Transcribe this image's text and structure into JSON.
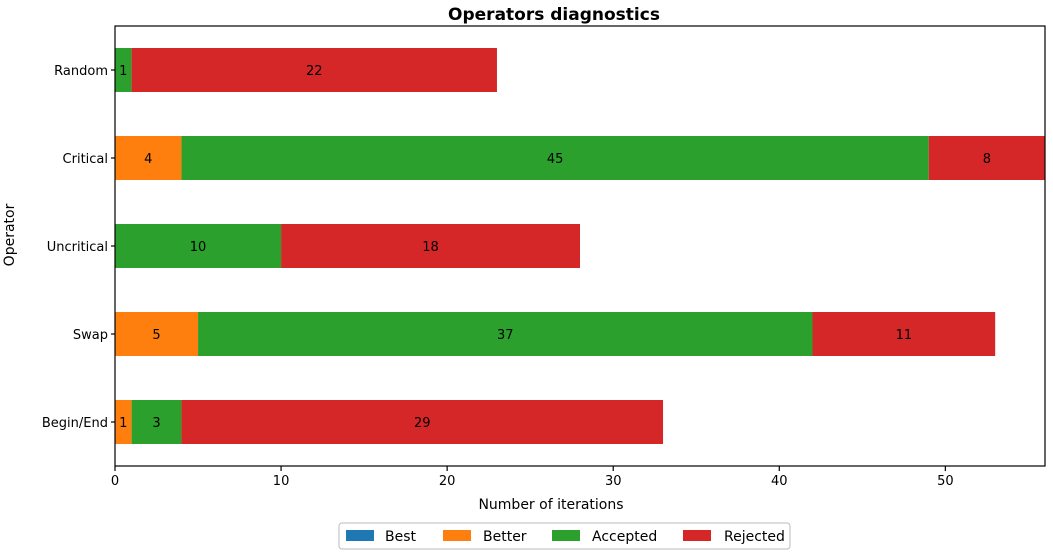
{
  "chart_data": {
    "type": "bar",
    "orientation": "horizontal",
    "stacked": true,
    "title": "Operators diagnostics",
    "xlabel": "Number of iterations",
    "ylabel": "Operator",
    "xlim": [
      0,
      56
    ],
    "xticks": [
      0,
      10,
      20,
      30,
      40,
      50
    ],
    "categories": [
      "Random",
      "Critical",
      "Uncritical",
      "Swap",
      "Begin/End"
    ],
    "series": [
      {
        "name": "Best",
        "color": "#1f77b4",
        "values": [
          0,
          0,
          0,
          0,
          0
        ]
      },
      {
        "name": "Better",
        "color": "#ff7f0e",
        "values": [
          0,
          4,
          0,
          5,
          1
        ]
      },
      {
        "name": "Accepted",
        "color": "#2ca02c",
        "values": [
          1,
          45,
          10,
          37,
          3
        ]
      },
      {
        "name": "Rejected",
        "color": "#d62728",
        "values": [
          22,
          8,
          18,
          11,
          29
        ]
      }
    ],
    "grid": false,
    "legend_position": "bottom"
  }
}
